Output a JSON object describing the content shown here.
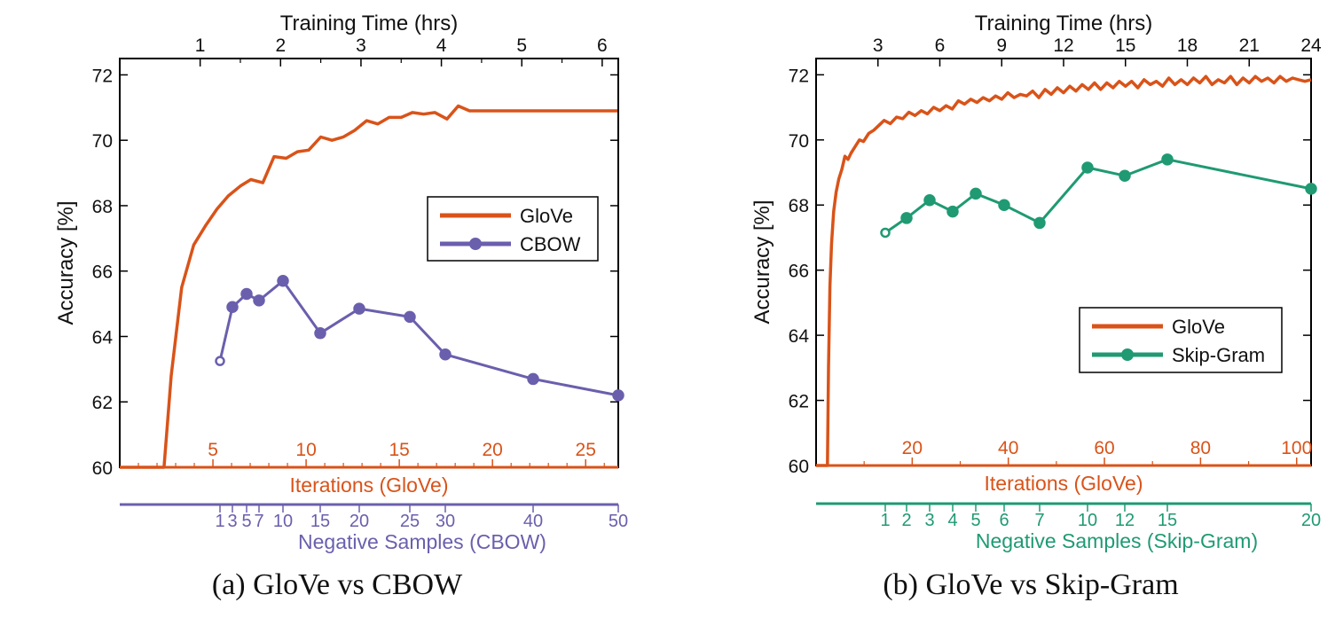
{
  "chart_data": [
    {
      "type": "line",
      "caption": "(a)  GloVe vs CBOW",
      "ylabel": "Accuracy [%]",
      "ylim": [
        60,
        72.5
      ],
      "yticks": [
        60,
        62,
        64,
        66,
        68,
        70,
        72
      ],
      "top_axis": {
        "label": "Training Time (hrs)",
        "ticks": [
          {
            "value": 1,
            "label": "1"
          },
          {
            "value": 2,
            "label": "2"
          },
          {
            "value": 3,
            "label": "3"
          },
          {
            "value": 4,
            "label": "4"
          },
          {
            "value": 5,
            "label": "5"
          },
          {
            "value": 6,
            "label": "6"
          }
        ],
        "minor_ticks": [
          1.5,
          2.5,
          3.5,
          4.5,
          5.5
        ]
      },
      "iterations_axis": {
        "label": "Iterations (GloVe)",
        "ticks": [
          {
            "value": 5,
            "label": "5"
          },
          {
            "value": 10,
            "label": "10"
          },
          {
            "value": 15,
            "label": "15"
          },
          {
            "value": 20,
            "label": "20"
          },
          {
            "value": 25,
            "label": "25"
          }
        ],
        "minor_ticks": [
          1,
          2,
          3,
          4,
          6,
          7,
          8,
          9,
          11,
          12,
          13,
          14,
          16,
          17,
          18,
          19,
          21,
          22,
          23,
          24,
          26
        ]
      },
      "negative_axis": {
        "label": "Negative Samples (CBOW)",
        "ticks": [
          {
            "value": 1,
            "label": "1"
          },
          {
            "value": 3,
            "label": "3"
          },
          {
            "value": 5,
            "label": "5"
          },
          {
            "value": 7,
            "label": "7"
          },
          {
            "value": 10,
            "label": "10"
          },
          {
            "value": 15,
            "label": "15"
          },
          {
            "value": 20,
            "label": "20"
          },
          {
            "value": 25,
            "label": "25"
          },
          {
            "value": 30,
            "label": "30"
          },
          {
            "value": 40,
            "label": "40"
          },
          {
            "value": 50,
            "label": "50"
          }
        ]
      },
      "legend": {
        "position": "right",
        "entries": [
          "GloVe",
          "CBOW"
        ]
      },
      "series": [
        {
          "name": "GloVe",
          "color": "#d95319",
          "marker": false,
          "x_axis": "training_time_hrs",
          "x": [
            0,
            0.55,
            0.64,
            0.77,
            0.92,
            1.07,
            1.21,
            1.35,
            1.5,
            1.63,
            1.78,
            1.92,
            2.07,
            2.21,
            2.35,
            2.5,
            2.64,
            2.78,
            2.92,
            3.07,
            3.21,
            3.35,
            3.5,
            3.64,
            3.78,
            3.92,
            4.07,
            4.21,
            4.35,
            4.5,
            4.64,
            4.78,
            4.92,
            5.07,
            5.21,
            5.35,
            5.5,
            5.64,
            5.78,
            5.93,
            6.07,
            6.19
          ],
          "y": [
            60,
            60,
            62.8,
            65.5,
            66.8,
            67.4,
            67.9,
            68.3,
            68.6,
            68.8,
            68.7,
            69.5,
            69.45,
            69.65,
            69.7,
            70.1,
            70.0,
            70.1,
            70.3,
            70.6,
            70.5,
            70.7,
            70.7,
            70.85,
            70.8,
            70.85,
            70.65,
            71.05,
            70.9,
            70.9,
            70.9,
            70.9,
            70.9,
            70.9,
            70.9,
            70.9,
            70.9,
            70.9,
            70.9,
            70.9,
            70.9,
            70.9
          ]
        },
        {
          "name": "CBOW",
          "color": "#6a5fad",
          "marker": true,
          "x_axis": "negative_samples",
          "x": [
            1,
            3,
            5,
            7,
            10,
            15,
            20,
            25,
            30,
            40,
            50
          ],
          "y": [
            63.25,
            64.9,
            65.3,
            65.1,
            65.7,
            64.1,
            64.85,
            64.6,
            63.45,
            62.7,
            62.2
          ]
        }
      ]
    },
    {
      "type": "line",
      "caption": "(b)  GloVe vs Skip-Gram",
      "ylabel": "Accuracy [%]",
      "ylim": [
        60,
        72.5
      ],
      "yticks": [
        60,
        62,
        64,
        66,
        68,
        70,
        72
      ],
      "top_axis": {
        "label": "Training Time (hrs)",
        "ticks": [
          {
            "value": 3,
            "label": "3"
          },
          {
            "value": 6,
            "label": "6"
          },
          {
            "value": 9,
            "label": "9"
          },
          {
            "value": 12,
            "label": "12"
          },
          {
            "value": 15,
            "label": "15"
          },
          {
            "value": 18,
            "label": "18"
          },
          {
            "value": 21,
            "label": "21"
          },
          {
            "value": 24,
            "label": "24"
          }
        ]
      },
      "iterations_axis": {
        "label": "Iterations (GloVe)",
        "ticks": [
          {
            "value": 20,
            "label": "20"
          },
          {
            "value": 40,
            "label": "40"
          },
          {
            "value": 60,
            "label": "60"
          },
          {
            "value": 80,
            "label": "80"
          },
          {
            "value": 100,
            "label": "100"
          }
        ],
        "minor_ticks": [
          10,
          30,
          50,
          70,
          90
        ]
      },
      "negative_axis": {
        "label": "Negative Samples (Skip-Gram)",
        "ticks": [
          {
            "value": 1,
            "label": "1"
          },
          {
            "value": 2,
            "label": "2"
          },
          {
            "value": 3,
            "label": "3"
          },
          {
            "value": 4,
            "label": "4"
          },
          {
            "value": 5,
            "label": "5"
          },
          {
            "value": 6,
            "label": "6"
          },
          {
            "value": 7,
            "label": "7"
          },
          {
            "value": 10,
            "label": "10"
          },
          {
            "value": 12,
            "label": "12"
          },
          {
            "value": 15,
            "label": "15"
          },
          {
            "value": 20,
            "label": "20"
          }
        ]
      },
      "legend": {
        "position": "lower-right",
        "entries": [
          "GloVe",
          "Skip-Gram"
        ]
      },
      "series": [
        {
          "name": "GloVe",
          "color": "#d95319",
          "marker": false,
          "x_axis": "training_time_hrs",
          "x": [
            0,
            0.55,
            0.6,
            0.67,
            0.75,
            0.85,
            0.97,
            1.1,
            1.25,
            1.4,
            1.55,
            1.7,
            1.9,
            2.1,
            2.3,
            2.55,
            2.8,
            3.05,
            3.3,
            3.6,
            3.9,
            4.2,
            4.5,
            4.8,
            5.1,
            5.4,
            5.7,
            6.0,
            6.3,
            6.6,
            6.9,
            7.2,
            7.5,
            7.8,
            8.1,
            8.4,
            8.7,
            9.0,
            9.3,
            9.6,
            9.9,
            10.2,
            10.5,
            10.8,
            11.1,
            11.4,
            11.7,
            12.0,
            12.3,
            12.6,
            12.9,
            13.2,
            13.5,
            13.8,
            14.1,
            14.4,
            14.7,
            15.0,
            15.3,
            15.6,
            15.9,
            16.2,
            16.5,
            16.8,
            17.1,
            17.4,
            17.7,
            18.0,
            18.3,
            18.6,
            18.9,
            19.2,
            19.5,
            19.8,
            20.1,
            20.4,
            20.7,
            21.0,
            21.3,
            21.6,
            21.9,
            22.2,
            22.5,
            22.8,
            23.1,
            23.4,
            23.7,
            24.0
          ],
          "y": [
            60,
            60,
            63,
            65.5,
            66.8,
            67.8,
            68.4,
            68.8,
            69.1,
            69.5,
            69.4,
            69.6,
            69.8,
            70.0,
            69.95,
            70.2,
            70.3,
            70.45,
            70.6,
            70.5,
            70.7,
            70.65,
            70.85,
            70.75,
            70.9,
            70.8,
            71.0,
            70.9,
            71.05,
            70.95,
            71.2,
            71.1,
            71.25,
            71.15,
            71.3,
            71.2,
            71.35,
            71.25,
            71.45,
            71.3,
            71.4,
            71.35,
            71.5,
            71.3,
            71.55,
            71.4,
            71.6,
            71.45,
            71.65,
            71.5,
            71.7,
            71.55,
            71.75,
            71.55,
            71.75,
            71.6,
            71.8,
            71.65,
            71.8,
            71.6,
            71.85,
            71.7,
            71.8,
            71.65,
            71.9,
            71.7,
            71.85,
            71.7,
            71.9,
            71.75,
            71.95,
            71.7,
            71.85,
            71.75,
            71.95,
            71.7,
            71.9,
            71.75,
            71.95,
            71.8,
            71.9,
            71.75,
            71.95,
            71.8,
            71.9,
            71.85,
            71.8,
            71.85
          ]
        },
        {
          "name": "Skip-Gram",
          "color": "#1f9a73",
          "marker": true,
          "x_axis": "negative_samples",
          "x": [
            1,
            2,
            3,
            4,
            5,
            6,
            7,
            10,
            12,
            15,
            20
          ],
          "y": [
            67.15,
            67.6,
            68.15,
            67.8,
            68.35,
            68.0,
            67.45,
            69.15,
            68.9,
            69.4,
            68.5
          ]
        }
      ]
    }
  ]
}
